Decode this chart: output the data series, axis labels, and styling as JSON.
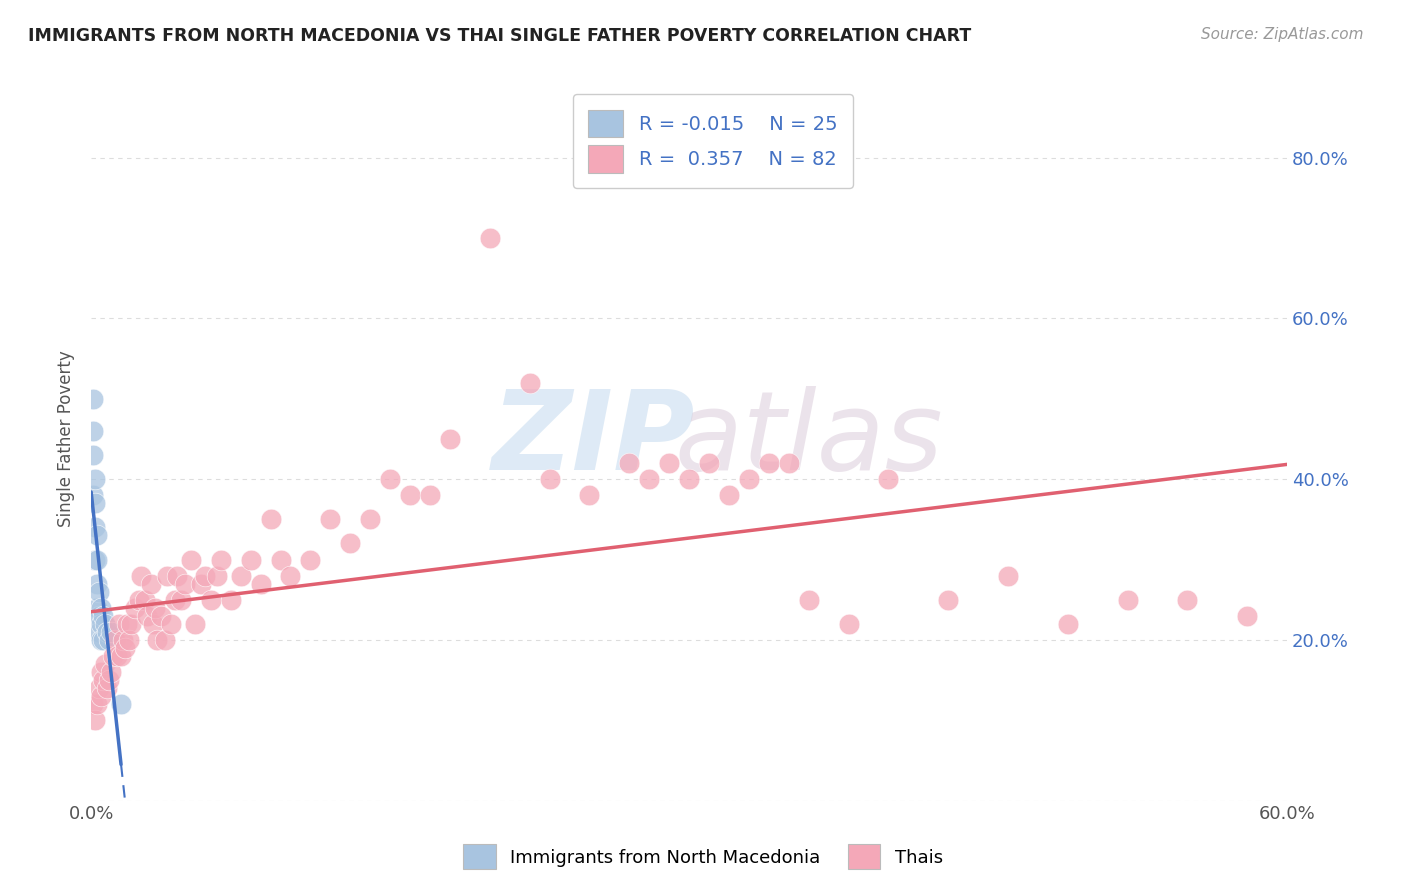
{
  "title": "IMMIGRANTS FROM NORTH MACEDONIA VS THAI SINGLE FATHER POVERTY CORRELATION CHART",
  "source": "Source: ZipAtlas.com",
  "ylabel": "Single Father Poverty",
  "xlim": [
    0.0,
    0.6
  ],
  "ylim": [
    0.0,
    0.9
  ],
  "grid_color": "#dddddd",
  "background_color": "#ffffff",
  "blue_color": "#a8c4e0",
  "pink_color": "#f4a8b8",
  "blue_line_color": "#4472c4",
  "pink_line_color": "#e06070",
  "R_blue": -0.015,
  "N_blue": 25,
  "R_pink": 0.357,
  "N_pink": 82,
  "legend_label_blue": "Immigrants from North Macedonia",
  "legend_label_pink": "Thais",
  "blue_scatter_x": [
    0.001,
    0.001,
    0.001,
    0.001,
    0.002,
    0.002,
    0.002,
    0.002,
    0.003,
    0.003,
    0.003,
    0.003,
    0.004,
    0.004,
    0.004,
    0.005,
    0.005,
    0.005,
    0.006,
    0.006,
    0.007,
    0.008,
    0.009,
    0.01,
    0.015
  ],
  "blue_scatter_y": [
    0.5,
    0.46,
    0.43,
    0.38,
    0.4,
    0.37,
    0.34,
    0.3,
    0.33,
    0.3,
    0.27,
    0.24,
    0.26,
    0.23,
    0.21,
    0.24,
    0.22,
    0.2,
    0.23,
    0.2,
    0.22,
    0.21,
    0.2,
    0.21,
    0.12
  ],
  "pink_scatter_x": [
    0.001,
    0.002,
    0.003,
    0.004,
    0.005,
    0.005,
    0.006,
    0.007,
    0.008,
    0.009,
    0.01,
    0.011,
    0.012,
    0.013,
    0.014,
    0.015,
    0.016,
    0.017,
    0.018,
    0.019,
    0.02,
    0.022,
    0.024,
    0.025,
    0.027,
    0.028,
    0.03,
    0.031,
    0.032,
    0.033,
    0.035,
    0.037,
    0.038,
    0.04,
    0.042,
    0.043,
    0.045,
    0.047,
    0.05,
    0.052,
    0.055,
    0.057,
    0.06,
    0.063,
    0.065,
    0.07,
    0.075,
    0.08,
    0.085,
    0.09,
    0.095,
    0.1,
    0.11,
    0.12,
    0.13,
    0.14,
    0.15,
    0.16,
    0.17,
    0.18,
    0.2,
    0.22,
    0.23,
    0.25,
    0.27,
    0.28,
    0.29,
    0.3,
    0.31,
    0.32,
    0.33,
    0.34,
    0.35,
    0.36,
    0.38,
    0.4,
    0.43,
    0.46,
    0.49,
    0.52,
    0.55,
    0.58
  ],
  "pink_scatter_y": [
    0.12,
    0.1,
    0.12,
    0.14,
    0.13,
    0.16,
    0.15,
    0.17,
    0.14,
    0.15,
    0.16,
    0.18,
    0.2,
    0.18,
    0.22,
    0.18,
    0.2,
    0.19,
    0.22,
    0.2,
    0.22,
    0.24,
    0.25,
    0.28,
    0.25,
    0.23,
    0.27,
    0.22,
    0.24,
    0.2,
    0.23,
    0.2,
    0.28,
    0.22,
    0.25,
    0.28,
    0.25,
    0.27,
    0.3,
    0.22,
    0.27,
    0.28,
    0.25,
    0.28,
    0.3,
    0.25,
    0.28,
    0.3,
    0.27,
    0.35,
    0.3,
    0.28,
    0.3,
    0.35,
    0.32,
    0.35,
    0.4,
    0.38,
    0.38,
    0.45,
    0.7,
    0.52,
    0.4,
    0.38,
    0.42,
    0.4,
    0.42,
    0.4,
    0.42,
    0.38,
    0.4,
    0.42,
    0.42,
    0.25,
    0.22,
    0.4,
    0.25,
    0.28,
    0.22,
    0.25,
    0.25,
    0.23
  ]
}
